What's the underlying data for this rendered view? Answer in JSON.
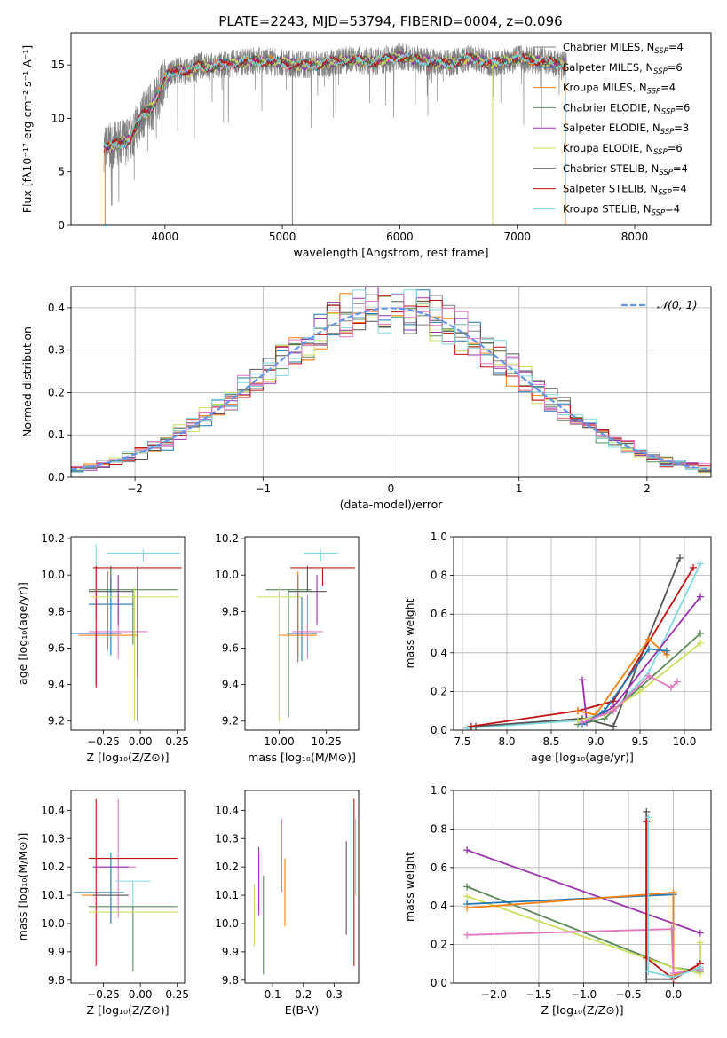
{
  "figure_title": "PLATE=2243, MJD=53794, FIBERID=0004, z=0.096",
  "colors": {
    "chabrier_miles": "#7f7f7f",
    "salpeter_miles": "#1f77b4",
    "kroupa_miles": "#ff7f0e",
    "chabrier_elodie": "#5a8a5a",
    "salpeter_elodie": "#9b30b0",
    "kroupa_elodie": "#c8e05a",
    "chabrier_stelib": "#555555",
    "salpeter_stelib": "#c01010",
    "kroupa_stelib": "#80d8e0",
    "pink": "#e377c2",
    "gaussian": "#6495ed"
  },
  "chart_data": [
    {
      "id": "spectrum",
      "type": "line",
      "xlabel": "wavelength [Angstrom, rest frame]",
      "ylabel": "Flux [fλ10⁻¹⁷ erg cm⁻² s⁻¹ A⁻¹]",
      "xlim": [
        3200,
        8650
      ],
      "ylim": [
        0,
        18
      ],
      "xticks": [
        4000,
        5000,
        6000,
        7000,
        8000
      ],
      "yticks": [
        0,
        5,
        10,
        15
      ],
      "legend_position": "right",
      "legend": [
        {
          "label": "Chabrier MILES, N",
          "sub": "SSP",
          "suffix": "=4",
          "color": "#7f7f7f"
        },
        {
          "label": "Salpeter MILES, N",
          "sub": "SSP",
          "suffix": "=6",
          "color": "#1f77b4"
        },
        {
          "label": "Kroupa MILES, N",
          "sub": "SSP",
          "suffix": "=4",
          "color": "#ff7f0e"
        },
        {
          "label": "Chabrier ELODIE, N",
          "sub": "SSP",
          "suffix": "=6",
          "color": "#5a8a5a"
        },
        {
          "label": "Salpeter ELODIE, N",
          "sub": "SSP",
          "suffix": "=3",
          "color": "#9b30b0"
        },
        {
          "label": "Kroupa ELODIE, N",
          "sub": "SSP",
          "suffix": "=6",
          "color": "#c8e05a"
        },
        {
          "label": "Chabrier STELIB, N",
          "sub": "SSP",
          "suffix": "=4",
          "color": "#555555"
        },
        {
          "label": "Salpeter STELIB, N",
          "sub": "SSP",
          "suffix": "=4",
          "color": "#c01010"
        },
        {
          "label": "Kroupa STELIB, N",
          "sub": "SSP",
          "suffix": "=4",
          "color": "#80d8e0"
        }
      ],
      "model_curve": {
        "x": [
          3480,
          3600,
          3700,
          3800,
          3900,
          4000,
          4100,
          4200,
          4300,
          4400,
          4600,
          4800,
          5000,
          5200,
          5400,
          5600,
          5800,
          6000,
          6200,
          6400,
          6600,
          6800,
          7000,
          7200,
          7400
        ],
        "y": [
          7.2,
          7.6,
          8.0,
          10.2,
          11.2,
          13.8,
          14.6,
          14.3,
          15.0,
          14.8,
          15.2,
          15.4,
          15.2,
          15.0,
          15.2,
          15.5,
          15.3,
          15.8,
          15.4,
          15.1,
          15.6,
          15.1,
          15.6,
          15.4,
          15.0
        ]
      },
      "data_range": [
        3480,
        7420
      ],
      "spike_lines": [
        {
          "x": 5085,
          "y_low": 0,
          "color": "#7f7f7f"
        },
        {
          "x": 6790,
          "y_low": 0,
          "color": "#c8e05a"
        },
        {
          "x": 7410,
          "y_low": 0,
          "color": "#ff7f0e"
        },
        {
          "x": 3490,
          "y_low": 0,
          "color": "#ff7f0e"
        }
      ]
    },
    {
      "id": "residual_histogram",
      "type": "line",
      "xlabel": "(data-model)/error",
      "ylabel": "Normed distribution",
      "xlim": [
        -2.5,
        2.5
      ],
      "ylim": [
        0,
        0.45
      ],
      "xticks": [
        -2,
        -1,
        0,
        1,
        2
      ],
      "yticks": [
        0.0,
        0.1,
        0.2,
        0.3,
        0.4
      ],
      "grid": true,
      "legend_label": "𝒩(0, 1)",
      "legend_position": "top-right",
      "gaussian": {
        "mean": 0,
        "sigma": 1
      }
    },
    {
      "id": "Z_vs_age",
      "type": "scatter",
      "xlabel": "Z [log₁₀(Z/Z⊙)]",
      "ylabel": "age  [log₁₀(age/yr)]",
      "xlim": [
        -0.47,
        0.3
      ],
      "ylim": [
        9.15,
        10.21
      ],
      "xticks": [
        -0.25,
        0.0,
        0.25
      ],
      "xticklabels": [
        "−0.25",
        "0.00",
        "0.25"
      ],
      "yticks": [
        9.2,
        9.4,
        9.6,
        9.8,
        10.0,
        10.2
      ],
      "errorbars": [
        {
          "x": -0.3,
          "y": 9.68,
          "xerr": 0.17,
          "yerr_lo": 0.28,
          "yerr_hi": 0.0,
          "color": "#1f77b4"
        },
        {
          "x": -0.2,
          "y": 9.84,
          "xerr": 0.15,
          "yerr_lo": 0.28,
          "yerr_hi": 0.15,
          "color": "#1f77b4"
        },
        {
          "x": -0.22,
          "y": 9.67,
          "xerr": 0.2,
          "yerr_lo": 0.08,
          "yerr_hi": 0.35,
          "color": "#ff7f0e"
        },
        {
          "x": -0.15,
          "y": 9.69,
          "xerr": 0.2,
          "yerr_lo": 0.15,
          "yerr_hi": 0.2,
          "color": "#e377c2"
        },
        {
          "x": 0.02,
          "y": 10.12,
          "xerr": 0.25,
          "yerr_lo": 0.05,
          "yerr_hi": 0.02,
          "color": "#80d8e0"
        },
        {
          "x": -0.3,
          "y": 10.05,
          "xerr": 0.0,
          "yerr_lo": 0.3,
          "yerr_hi": 0.12,
          "color": "#80d8e0"
        },
        {
          "x": -0.02,
          "y": 10.04,
          "xerr": 0.3,
          "yerr_lo": 0.6,
          "yerr_hi": 0.0,
          "color": "#c01010"
        },
        {
          "x": -0.3,
          "y": 10.0,
          "xerr": 0.0,
          "yerr_lo": 0.62,
          "yerr_hi": 0.05,
          "color": "#c01010"
        },
        {
          "x": -0.05,
          "y": 9.92,
          "xerr": 0.3,
          "yerr_lo": 0.3,
          "yerr_hi": 0.0,
          "color": "#5a8a5a"
        },
        {
          "x": -0.04,
          "y": 9.88,
          "xerr": 0.3,
          "yerr_lo": 0.68,
          "yerr_hi": 0.05,
          "color": "#c8e05a"
        },
        {
          "x": -0.15,
          "y": 9.85,
          "xerr": 0.0,
          "yerr_lo": 0.12,
          "yerr_hi": 0.15,
          "color": "#9b30b0"
        },
        {
          "x": -0.2,
          "y": 9.91,
          "xerr": 0.15,
          "yerr_lo": 0.0,
          "yerr_hi": 0.14,
          "color": "#555555"
        },
        {
          "x": -0.02,
          "y": 9.55,
          "xerr": 0.0,
          "yerr_lo": 0.35,
          "yerr_hi": 0.5,
          "color": "#7f7f7f"
        }
      ]
    },
    {
      "id": "mass_vs_age",
      "type": "scatter",
      "xlabel": "mass [log₁₀(M/M⊙)]",
      "ylabel": "",
      "xlim": [
        9.82,
        10.42
      ],
      "ylim": [
        9.15,
        10.21
      ],
      "xticks": [
        10.0,
        10.25
      ],
      "xticklabels": [
        "10.00",
        "10.25"
      ],
      "yticks": [
        9.2,
        9.4,
        9.6,
        9.8,
        10.0,
        10.2
      ],
      "errorbars": [
        {
          "x": 10.12,
          "y": 9.68,
          "xerr": 0.08,
          "yerr_lo": 0.15,
          "yerr_hi": 0.2,
          "color": "#1f77b4"
        },
        {
          "x": 10.1,
          "y": 9.67,
          "xerr": 0.1,
          "yerr_lo": 0.12,
          "yerr_hi": 0.35,
          "color": "#ff7f0e"
        },
        {
          "x": 10.15,
          "y": 9.69,
          "xerr": 0.08,
          "yerr_lo": 0.15,
          "yerr_hi": 0.2,
          "color": "#e377c2"
        },
        {
          "x": 10.22,
          "y": 10.12,
          "xerr": 0.09,
          "yerr_lo": 0.05,
          "yerr_hi": 0.02,
          "color": "#80d8e0"
        },
        {
          "x": 10.23,
          "y": 10.04,
          "xerr": 0.17,
          "yerr_lo": 0.1,
          "yerr_hi": 0.0,
          "color": "#c01010"
        },
        {
          "x": 10.05,
          "y": 9.92,
          "xerr": 0.12,
          "yerr_lo": 0.7,
          "yerr_hi": 0.0,
          "color": "#5a8a5a"
        },
        {
          "x": 10.0,
          "y": 9.88,
          "xerr": 0.12,
          "yerr_lo": 0.68,
          "yerr_hi": 0.05,
          "color": "#c8e05a"
        },
        {
          "x": 10.2,
          "y": 9.85,
          "xerr": 0.0,
          "yerr_lo": 0.12,
          "yerr_hi": 0.15,
          "color": "#9b30b0"
        },
        {
          "x": 10.15,
          "y": 9.91,
          "xerr": 0.1,
          "yerr_lo": 0.0,
          "yerr_hi": 0.14,
          "color": "#555555"
        },
        {
          "x": 10.1,
          "y": 9.9,
          "xerr": 0.0,
          "yerr_lo": 0.38,
          "yerr_hi": 0.1,
          "color": "#7f7f7f"
        }
      ]
    },
    {
      "id": "age_vs_massweight",
      "type": "line",
      "xlabel": "age  [log₁₀(age/yr)]",
      "ylabel": "mass weight",
      "xlim": [
        7.4,
        10.3
      ],
      "ylim": [
        0,
        1.0
      ],
      "xticks": [
        7.5,
        8.0,
        8.5,
        9.0,
        9.5,
        10.0
      ],
      "yticks": [
        0.0,
        0.2,
        0.4,
        0.6,
        0.8,
        1.0
      ],
      "grid": true,
      "series": [
        {
          "color": "#80d8e0",
          "x": [
            7.55,
            8.8,
            9.2,
            9.6,
            10.18
          ],
          "y": [
            0.01,
            0.05,
            0.1,
            0.3,
            0.86
          ]
        },
        {
          "color": "#555555",
          "x": [
            7.65,
            8.85,
            9.2,
            9.95
          ],
          "y": [
            0.02,
            0.06,
            0.02,
            0.89
          ]
        },
        {
          "color": "#c01010",
          "x": [
            7.6,
            8.8,
            9.2,
            10.1
          ],
          "y": [
            0.02,
            0.1,
            0.15,
            0.84
          ]
        },
        {
          "color": "#9b30b0",
          "x": [
            8.85,
            8.9,
            9.2,
            10.18
          ],
          "y": [
            0.26,
            0.04,
            0.12,
            0.69
          ]
        },
        {
          "color": "#5a8a5a",
          "x": [
            8.8,
            9.1,
            9.5,
            10.18
          ],
          "y": [
            0.03,
            0.06,
            0.22,
            0.5
          ]
        },
        {
          "color": "#c8e05a",
          "x": [
            8.8,
            9.1,
            9.5,
            10.18
          ],
          "y": [
            0.05,
            0.08,
            0.2,
            0.45
          ]
        },
        {
          "color": "#ff7f0e",
          "x": [
            8.8,
            9.0,
            9.6,
            9.8
          ],
          "y": [
            0.1,
            0.08,
            0.47,
            0.39
          ]
        },
        {
          "color": "#1f77b4",
          "x": [
            8.85,
            9.1,
            9.6,
            9.8
          ],
          "y": [
            0.03,
            0.1,
            0.42,
            0.41
          ]
        },
        {
          "color": "#e377c2",
          "x": [
            8.85,
            9.2,
            9.6,
            9.85,
            9.92
          ],
          "y": [
            0.04,
            0.1,
            0.28,
            0.22,
            0.25
          ]
        }
      ]
    },
    {
      "id": "Z_vs_mass",
      "type": "scatter",
      "xlabel": "Z [log₁₀(Z/Z⊙)]",
      "ylabel": "mass [log₁₀(M/M⊙)]",
      "xlim": [
        -0.47,
        0.3
      ],
      "ylim": [
        9.79,
        10.47
      ],
      "xticks": [
        -0.25,
        0.0,
        0.25
      ],
      "xticklabels": [
        "−0.25",
        "0.00",
        "0.25"
      ],
      "yticks": [
        9.8,
        9.9,
        10.0,
        10.1,
        10.2,
        10.3,
        10.4
      ],
      "errorbars": [
        {
          "x": -0.28,
          "y": 10.11,
          "xerr": 0.17,
          "yerr_lo": 0.0,
          "yerr_hi": 0.0,
          "color": "#1f77b4"
        },
        {
          "x": -0.25,
          "y": 10.1,
          "xerr": 0.15,
          "yerr_lo": 0.0,
          "yerr_hi": 0.0,
          "color": "#ff7f0e"
        },
        {
          "x": -0.15,
          "y": 10.2,
          "xerr": 0.12,
          "yerr_lo": 0.18,
          "yerr_hi": 0.24,
          "color": "#e377c2"
        },
        {
          "x": -0.05,
          "y": 10.15,
          "xerr": 0.12,
          "yerr_lo": 0.1,
          "yerr_hi": 0.0,
          "color": "#80d8e0"
        },
        {
          "x": -0.05,
          "y": 10.23,
          "xerr": 0.3,
          "yerr_lo": 0.0,
          "yerr_hi": 0.0,
          "color": "#c01010"
        },
        {
          "x": -0.3,
          "y": 10.2,
          "xerr": 0.0,
          "yerr_lo": 0.35,
          "yerr_hi": 0.24,
          "color": "#c01010"
        },
        {
          "x": -0.2,
          "y": 10.2,
          "xerr": 0.12,
          "yerr_lo": 0.0,
          "yerr_hi": 0.0,
          "color": "#9b30b0"
        },
        {
          "x": -0.05,
          "y": 10.06,
          "xerr": 0.3,
          "yerr_lo": 0.23,
          "yerr_hi": 0.0,
          "color": "#5a8a5a"
        },
        {
          "x": -0.05,
          "y": 10.04,
          "xerr": 0.3,
          "yerr_lo": 0.0,
          "yerr_hi": 0.0,
          "color": "#c8e05a"
        },
        {
          "x": -0.2,
          "y": 10.1,
          "xerr": 0.12,
          "yerr_lo": 0.0,
          "yerr_hi": 0.0,
          "color": "#555555"
        },
        {
          "x": -0.2,
          "y": 10.1,
          "xerr": 0.0,
          "yerr_lo": 0.1,
          "yerr_hi": 0.15,
          "color": "#1f77b4"
        }
      ]
    },
    {
      "id": "EBV_vs_mass",
      "type": "scatter",
      "xlabel": "E(B-V)",
      "ylabel": "",
      "xlim": [
        0.01,
        0.38
      ],
      "ylim": [
        9.79,
        10.47
      ],
      "xticks": [
        0.1,
        0.2,
        0.3
      ],
      "xticklabels": [
        "0.1",
        "0.2",
        "0.3"
      ],
      "yticks": [
        9.8,
        9.9,
        10.0,
        10.1,
        10.2,
        10.3,
        10.4
      ],
      "errorbars": [
        {
          "x": 0.04,
          "y": 10.03,
          "xerr": 0.0,
          "yerr_lo": 0.11,
          "yerr_hi": 0.11,
          "color": "#c8e05a"
        },
        {
          "x": 0.055,
          "y": 10.15,
          "xerr": 0.0,
          "yerr_lo": 0.12,
          "yerr_hi": 0.12,
          "color": "#9b30b0"
        },
        {
          "x": 0.07,
          "y": 10.0,
          "xerr": 0.0,
          "yerr_lo": 0.18,
          "yerr_hi": 0.17,
          "color": "#5a8a5a"
        },
        {
          "x": 0.13,
          "y": 10.25,
          "xerr": 0.0,
          "yerr_lo": 0.14,
          "yerr_hi": 0.12,
          "color": "#e377c2"
        },
        {
          "x": 0.14,
          "y": 10.11,
          "xerr": 0.0,
          "yerr_lo": 0.12,
          "yerr_hi": 0.12,
          "color": "#ff7f0e"
        },
        {
          "x": 0.34,
          "y": 10.12,
          "xerr": 0.0,
          "yerr_lo": 0.16,
          "yerr_hi": 0.17,
          "color": "#555555"
        },
        {
          "x": 0.365,
          "y": 10.15,
          "xerr": 0.0,
          "yerr_lo": 0.3,
          "yerr_hi": 0.29,
          "color": "#c01010"
        },
        {
          "x": 0.37,
          "y": 10.2,
          "xerr": 0.0,
          "yerr_lo": 0.1,
          "yerr_hi": 0.17,
          "color": "#80d8e0"
        }
      ]
    },
    {
      "id": "Z_vs_massweight",
      "type": "line",
      "xlabel": "Z [log₁₀(Z/Z⊙)]",
      "ylabel": "mass weight",
      "xlim": [
        -2.45,
        0.42
      ],
      "ylim": [
        0,
        1.0
      ],
      "xticks": [
        -2.0,
        -1.5,
        -1.0,
        -0.5,
        0.0
      ],
      "xticklabels": [
        "−2.0",
        "−1.5",
        "−1.0",
        "−0.5",
        "0.0"
      ],
      "yticks": [
        0.0,
        0.2,
        0.4,
        0.6,
        0.8,
        1.0
      ],
      "grid": true,
      "series": [
        {
          "color": "#9b30b0",
          "x": [
            -2.3,
            0.3
          ],
          "y": [
            0.69,
            0.26
          ]
        },
        {
          "color": "#5a8a5a",
          "x": [
            -2.3,
            0.0,
            0.3,
            0.3
          ],
          "y": [
            0.5,
            0.08,
            0.06,
            0.1
          ]
        },
        {
          "color": "#c8e05a",
          "x": [
            -2.3,
            0.0,
            0.3,
            0.3
          ],
          "y": [
            0.45,
            0.08,
            0.05,
            0.21
          ]
        },
        {
          "color": "#1f77b4",
          "x": [
            -2.3,
            0.0,
            0.0
          ],
          "y": [
            0.41,
            0.46,
            0.03
          ]
        },
        {
          "color": "#ff7f0e",
          "x": [
            -2.3,
            0.0,
            0.0,
            0.3
          ],
          "y": [
            0.39,
            0.47,
            0.04,
            0.08
          ]
        },
        {
          "color": "#e377c2",
          "x": [
            -2.3,
            -0.02,
            0.0,
            0.3,
            0.3
          ],
          "y": [
            0.25,
            0.28,
            0.05,
            0.07,
            0.1
          ]
        },
        {
          "color": "#555555",
          "x": [
            -0.3,
            -0.3,
            0.0,
            0.3
          ],
          "y": [
            0.89,
            0.02,
            0.02,
            0.1
          ]
        },
        {
          "color": "#c01010",
          "x": [
            -0.3,
            -0.3,
            0.0,
            0.3
          ],
          "y": [
            0.84,
            0.13,
            0.02,
            0.1
          ]
        },
        {
          "color": "#80d8e0",
          "x": [
            -0.28,
            -0.28,
            0.0,
            0.3
          ],
          "y": [
            0.86,
            0.06,
            0.03,
            0.08
          ]
        }
      ]
    }
  ]
}
